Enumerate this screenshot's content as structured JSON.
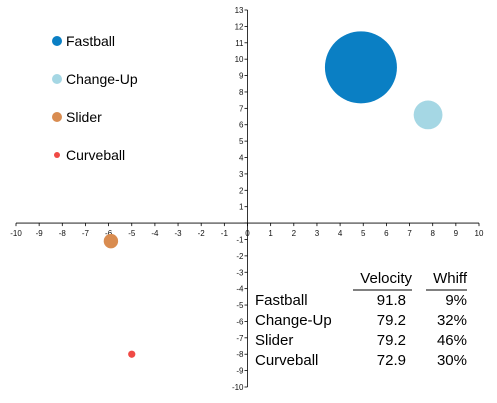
{
  "chart_data": {
    "type": "scatter",
    "title": "",
    "xlabel": "",
    "ylabel": "",
    "xlim": [
      -10,
      10
    ],
    "ylim": [
      -10,
      13
    ],
    "x_ticks": [
      -10,
      -9,
      -8,
      -7,
      -6,
      -5,
      -4,
      -3,
      -2,
      -1,
      0,
      1,
      2,
      3,
      4,
      5,
      6,
      7,
      8,
      9,
      10
    ],
    "y_ticks": [
      -10,
      -9,
      -8,
      -7,
      -6,
      -5,
      -4,
      -3,
      -2,
      -1,
      0,
      1,
      2,
      3,
      4,
      5,
      6,
      7,
      8,
      9,
      10,
      11,
      12,
      13
    ],
    "grid": false,
    "legend_position": "top-left",
    "series": [
      {
        "name": "Fastball",
        "color": "#0a7fc4",
        "x": 4.9,
        "y": 9.5,
        "bubble_size": 1.0
      },
      {
        "name": "Change-Up",
        "color": "#a5d7e4",
        "x": 7.8,
        "y": 6.6,
        "bubble_size": 0.16
      },
      {
        "name": "Slider",
        "color": "#d98c50",
        "x": -5.9,
        "y": -1.1,
        "bubble_size": 0.04
      },
      {
        "name": "Curveball",
        "color": "#f04a45",
        "x": -5.0,
        "y": -8.0,
        "bubble_size": 0.01
      }
    ],
    "table": {
      "headers": [
        "",
        "Velocity",
        "Whiff"
      ],
      "rows": [
        [
          "Fastball",
          "91.8",
          "9%"
        ],
        [
          "Change-Up",
          "79.2",
          "32%"
        ],
        [
          "Slider",
          "79.2",
          "46%"
        ],
        [
          "Curveball",
          "72.9",
          "30%"
        ]
      ]
    }
  }
}
